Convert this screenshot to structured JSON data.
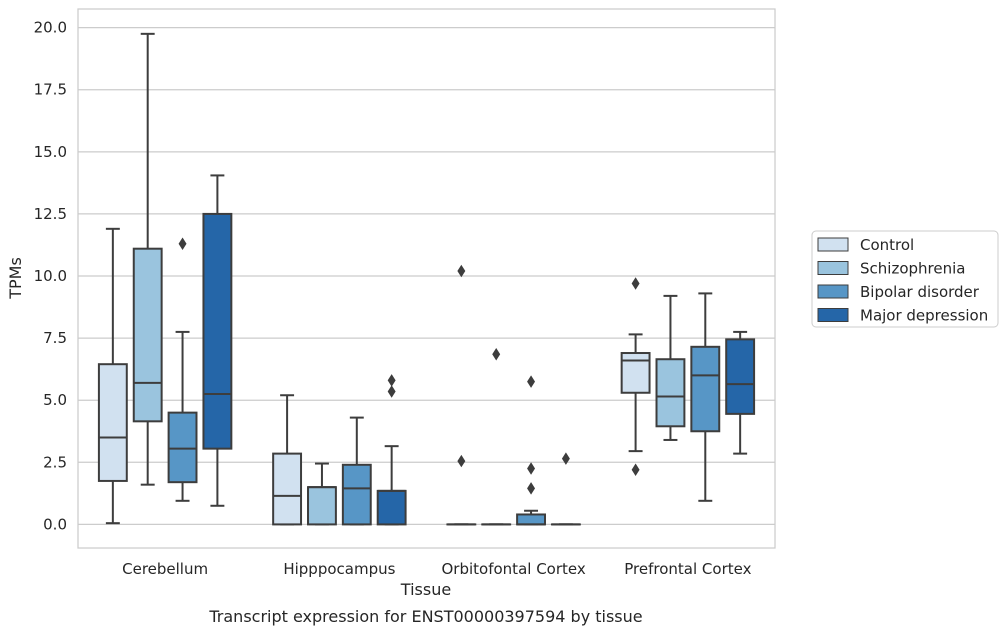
{
  "caption": "Transcript expression for ENST00000397594 by tissue",
  "chart_data": {
    "type": "box",
    "title": "",
    "xlabel": "Tissue",
    "ylabel": "TPMs",
    "ylim": [
      -0.95,
      20.75
    ],
    "yticks": [
      0.0,
      2.5,
      5.0,
      7.5,
      10.0,
      12.5,
      15.0,
      17.5,
      20.0
    ],
    "ytick_labels": [
      "0.0",
      "2.5",
      "5.0",
      "7.5",
      "10.0",
      "12.5",
      "15.0",
      "17.5",
      "20.0"
    ],
    "grid": "horizontal",
    "legend_position": "right",
    "categories": [
      "Cerebellum",
      "Hipppocampus",
      "Orbitofontal Cortex",
      "Prefrontal Cortex"
    ],
    "series": [
      {
        "name": "Control",
        "color": "#d1e1f0",
        "boxes": [
          {
            "whisker_low": 0.05,
            "q1": 1.75,
            "median": 3.5,
            "q3": 6.45,
            "whisker_high": 11.9,
            "outliers": []
          },
          {
            "whisker_low": 0.0,
            "q1": 0.0,
            "median": 1.15,
            "q3": 2.85,
            "whisker_high": 5.2,
            "outliers": []
          },
          {
            "whisker_low": 0.0,
            "q1": 0.0,
            "median": 0.0,
            "q3": 0.0,
            "whisker_high": 0.0,
            "outliers": [
              10.2,
              2.55
            ]
          },
          {
            "whisker_low": 2.95,
            "q1": 5.3,
            "median": 6.6,
            "q3": 6.9,
            "whisker_high": 7.65,
            "outliers": [
              9.7,
              2.2
            ]
          }
        ]
      },
      {
        "name": "Schizophrenia",
        "color": "#9ac4de",
        "boxes": [
          {
            "whisker_low": 1.6,
            "q1": 4.15,
            "median": 5.7,
            "q3": 11.1,
            "whisker_high": 19.75,
            "outliers": []
          },
          {
            "whisker_low": 0.0,
            "q1": 0.0,
            "median": 1.5,
            "q3": 1.5,
            "whisker_high": 2.45,
            "outliers": []
          },
          {
            "whisker_low": 0.0,
            "q1": 0.0,
            "median": 0.0,
            "q3": 0.0,
            "whisker_high": 0.0,
            "outliers": [
              6.85
            ]
          },
          {
            "whisker_low": 3.4,
            "q1": 3.95,
            "median": 5.15,
            "q3": 6.65,
            "whisker_high": 9.2,
            "outliers": []
          }
        ]
      },
      {
        "name": "Bipolar disorder",
        "color": "#5796c6",
        "boxes": [
          {
            "whisker_low": 0.95,
            "q1": 1.7,
            "median": 3.05,
            "q3": 4.5,
            "whisker_high": 7.75,
            "outliers": [
              11.3
            ]
          },
          {
            "whisker_low": 0.0,
            "q1": 0.0,
            "median": 1.45,
            "q3": 2.4,
            "whisker_high": 4.3,
            "outliers": []
          },
          {
            "whisker_low": 0.0,
            "q1": 0.0,
            "median": 0.0,
            "q3": 0.4,
            "whisker_high": 0.55,
            "outliers": [
              5.75,
              2.25,
              1.45
            ]
          },
          {
            "whisker_low": 0.95,
            "q1": 3.75,
            "median": 6.0,
            "q3": 7.15,
            "whisker_high": 9.3,
            "outliers": []
          }
        ]
      },
      {
        "name": "Major depression",
        "color": "#2566a8",
        "boxes": [
          {
            "whisker_low": 0.75,
            "q1": 3.05,
            "median": 5.25,
            "q3": 12.5,
            "whisker_high": 14.05,
            "outliers": []
          },
          {
            "whisker_low": 0.0,
            "q1": 0.0,
            "median": 1.35,
            "q3": 1.35,
            "whisker_high": 3.15,
            "outliers": [
              5.8,
              5.35
            ]
          },
          {
            "whisker_low": 0.0,
            "q1": 0.0,
            "median": 0.0,
            "q3": 0.0,
            "whisker_high": 0.0,
            "outliers": [
              2.65
            ]
          },
          {
            "whisker_low": 2.85,
            "q1": 4.45,
            "median": 5.65,
            "q3": 7.45,
            "whisker_high": 7.75,
            "outliers": []
          }
        ]
      }
    ]
  }
}
